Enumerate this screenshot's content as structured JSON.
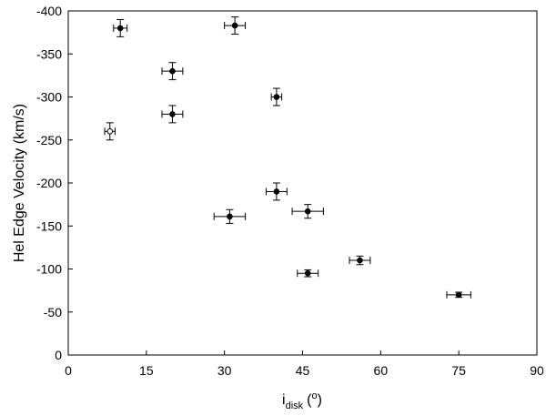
{
  "chart_data": {
    "type": "scatter",
    "ylabel": "Hel Edge Velocity  (km/s)",
    "xlabel": {
      "main": "i",
      "sub": "disk",
      "open": "(",
      "sup": "o",
      "close": ")"
    },
    "xlim": [
      0,
      90
    ],
    "xticks": [
      0,
      15,
      30,
      45,
      60,
      75,
      90
    ],
    "ylim": [
      0,
      -400
    ],
    "yticks": [
      0,
      -50,
      -100,
      -150,
      -200,
      -250,
      -300,
      -350,
      -400
    ],
    "series": [
      {
        "marker": "filled",
        "color": "#000000",
        "x": [
          10,
          20,
          20,
          32,
          40,
          40,
          31,
          46,
          46,
          56,
          75
        ],
        "y": [
          -380,
          -330,
          -280,
          -383,
          -300,
          -190,
          -161,
          -167,
          -95,
          -110,
          -70
        ],
        "xerr": [
          1.3,
          2,
          2,
          2,
          1,
          2,
          3,
          3,
          2,
          2,
          2.3
        ],
        "yerr": [
          10,
          10,
          10,
          10,
          10,
          10,
          8,
          8,
          4,
          5,
          3
        ]
      },
      {
        "marker": "open",
        "color": "#000000",
        "x": [
          8
        ],
        "y": [
          -260
        ],
        "xerr": [
          1
        ],
        "yerr": [
          10
        ]
      }
    ]
  }
}
